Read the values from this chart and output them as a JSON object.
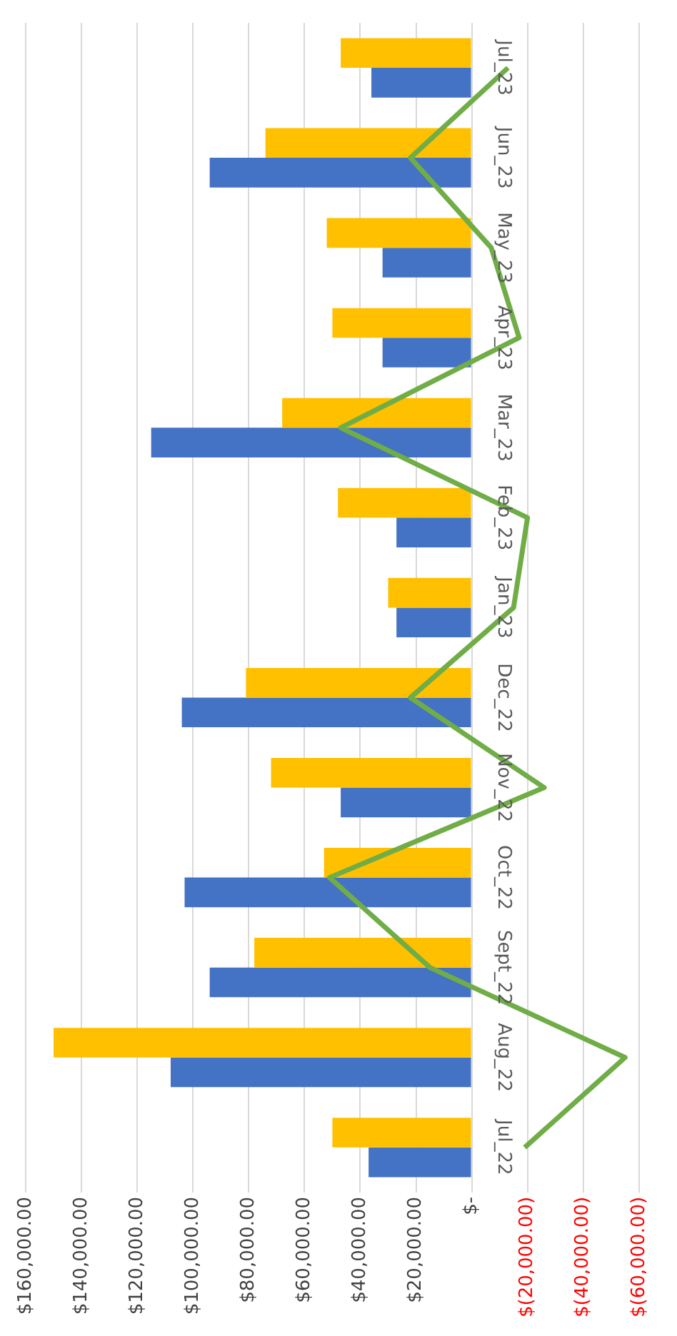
{
  "chart_data": {
    "type": "bar",
    "orientation": "horizontal",
    "categories": [
      "Jul_23",
      "Jun_23",
      "May_23",
      "Apr_23",
      "Mar_23",
      "Feb_23",
      "Jan_23",
      "Dec_22",
      "Nov_22",
      "Oct_22",
      "Sept_22",
      "Aug_22",
      "Jul_22"
    ],
    "series": [
      {
        "color": "#ffc000",
        "values": [
          47000,
          74000,
          52000,
          50000,
          68000,
          48000,
          30000,
          81000,
          72000,
          53000,
          78000,
          150000,
          50000
        ]
      },
      {
        "color": "#4472c4",
        "values": [
          36000,
          94000,
          32000,
          32000,
          115000,
          27000,
          27000,
          104000,
          47000,
          103000,
          94000,
          108000,
          37000
        ]
      },
      {
        "type": "line",
        "color": "#70ad47",
        "values": [
          -13000,
          22000,
          -7000,
          -17000,
          47000,
          -20000,
          -15000,
          22000,
          -26000,
          51000,
          15000,
          -55000,
          -19000
        ]
      }
    ],
    "xlim": [
      160000,
      -60000
    ],
    "xticks": [
      {
        "value": 160000,
        "label": "$160,000.00"
      },
      {
        "value": 140000,
        "label": "$140,000.00"
      },
      {
        "value": 120000,
        "label": "$120,000.00"
      },
      {
        "value": 100000,
        "label": "$100,000.00"
      },
      {
        "value": 80000,
        "label": "$80,000.00"
      },
      {
        "value": 60000,
        "label": "$60,000.00"
      },
      {
        "value": 40000,
        "label": "$40,000.00"
      },
      {
        "value": 20000,
        "label": "$20,000.00"
      },
      {
        "value": 0,
        "label": "$-"
      },
      {
        "value": -20000,
        "label": "$(20,000.00)"
      },
      {
        "value": -40000,
        "label": "$(40,000.00)"
      },
      {
        "value": -60000,
        "label": "$(60,000.00)"
      }
    ],
    "grid": "x",
    "legend": false,
    "marker": "none",
    "line_style": "solid"
  }
}
